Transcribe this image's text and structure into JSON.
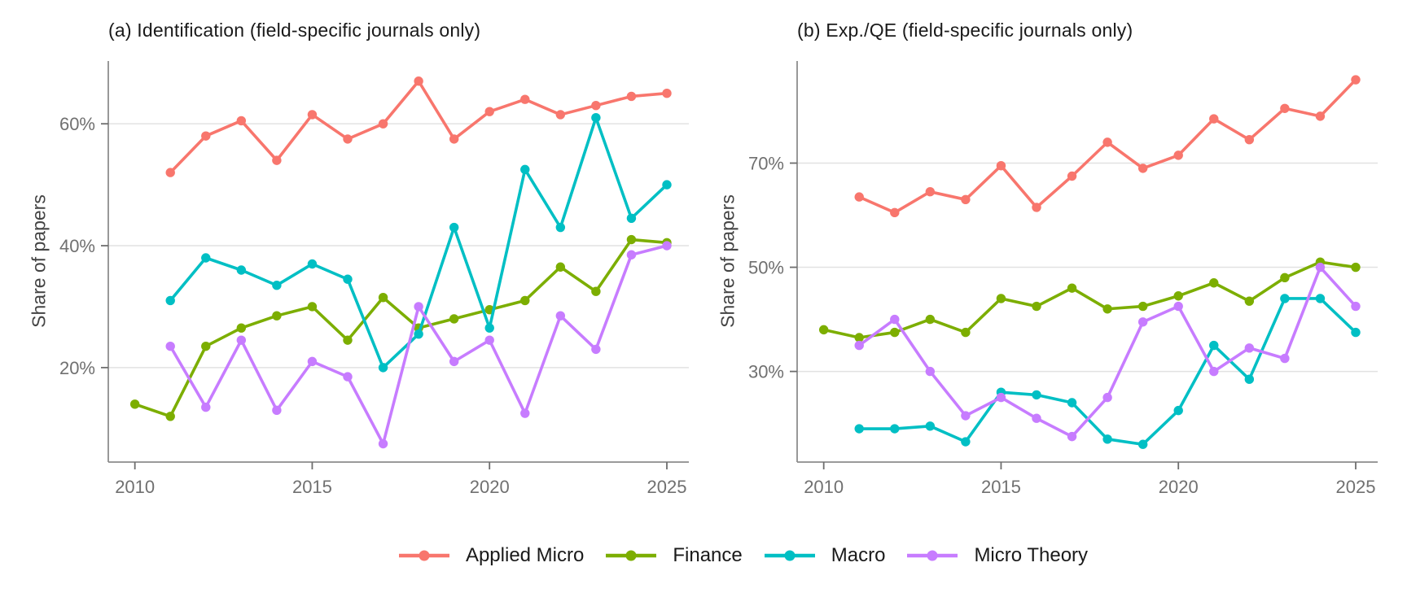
{
  "figure": {
    "background": "#ffffff",
    "axis_line_color": "#8c8c8c",
    "grid_color": "#e2e2e2",
    "tick_color": "#6e6e6e",
    "tick_label_color": "#707070"
  },
  "chart_data": [
    {
      "id": "a",
      "type": "line",
      "title": "(a) Identification (field-specific journals only)",
      "ylabel": "Share of papers",
      "xlabel": "",
      "x_ticks": [
        2010,
        2015,
        2020,
        2025
      ],
      "x_tick_labels": [
        "2010",
        "2015",
        "2020",
        "2025"
      ],
      "y_ticks": [
        20,
        40,
        60
      ],
      "y_tick_labels": [
        "20%",
        "40%",
        "60%"
      ],
      "xlim": [
        2009.25,
        2025.62
      ],
      "ylim": [
        4.5,
        70.3
      ],
      "grid": "horizontal-major-only",
      "legend_position": "bottom",
      "series": [
        {
          "name": "Applied Micro",
          "color": "#F8766D",
          "years": [
            2011,
            2012,
            2013,
            2014,
            2015,
            2016,
            2017,
            2018,
            2019,
            2020,
            2021,
            2022,
            2023,
            2024,
            2025
          ],
          "values": [
            52,
            58,
            60.5,
            54,
            61.5,
            57.5,
            60,
            67,
            57.5,
            62,
            64,
            61.5,
            63,
            64.5,
            65
          ]
        },
        {
          "name": "Finance",
          "color": "#7CAE00",
          "years": [
            2010,
            2011,
            2012,
            2013,
            2014,
            2015,
            2016,
            2017,
            2018,
            2019,
            2020,
            2021,
            2022,
            2023,
            2024,
            2025
          ],
          "values": [
            14,
            12,
            23.5,
            26.5,
            28.5,
            30,
            24.5,
            31.5,
            26.5,
            28,
            29.5,
            31,
            36.5,
            32.5,
            41,
            40.5
          ]
        },
        {
          "name": "Macro",
          "color": "#00BFC4",
          "years": [
            2011,
            2012,
            2013,
            2014,
            2015,
            2016,
            2017,
            2018,
            2019,
            2020,
            2021,
            2022,
            2023,
            2024,
            2025
          ],
          "values": [
            31,
            38,
            36,
            33.5,
            37,
            34.5,
            20,
            25.5,
            43,
            26.5,
            52.5,
            43,
            61,
            44.5,
            50
          ]
        },
        {
          "name": "Micro Theory",
          "color": "#C77CFF",
          "years": [
            2011,
            2012,
            2013,
            2014,
            2015,
            2016,
            2017,
            2018,
            2019,
            2020,
            2021,
            2022,
            2023,
            2024,
            2025
          ],
          "values": [
            23.5,
            13.5,
            24.5,
            13,
            21,
            18.5,
            7.5,
            30,
            21,
            24.5,
            12.5,
            28.5,
            23,
            38.5,
            40
          ]
        }
      ]
    },
    {
      "id": "b",
      "type": "line",
      "title": "(b) Exp./QE (field-specific journals only)",
      "ylabel": "Share of papers",
      "xlabel": "",
      "x_ticks": [
        2010,
        2015,
        2020,
        2025
      ],
      "x_tick_labels": [
        "2010",
        "2015",
        "2020",
        "2025"
      ],
      "y_ticks": [
        30,
        50,
        70
      ],
      "y_tick_labels": [
        "30%",
        "50%",
        "70%"
      ],
      "xlim": [
        2009.25,
        2025.62
      ],
      "ylim": [
        12.6,
        89.6
      ],
      "grid": "horizontal-major-only",
      "legend_position": "bottom",
      "series": [
        {
          "name": "Applied Micro",
          "color": "#F8766D",
          "years": [
            2011,
            2012,
            2013,
            2014,
            2015,
            2016,
            2017,
            2018,
            2019,
            2020,
            2021,
            2022,
            2023,
            2024,
            2025
          ],
          "values": [
            63.5,
            60.5,
            64.5,
            63,
            69.5,
            61.5,
            67.5,
            74,
            69,
            71.5,
            78.5,
            74.5,
            80.5,
            79,
            86
          ]
        },
        {
          "name": "Finance",
          "color": "#7CAE00",
          "years": [
            2010,
            2011,
            2012,
            2013,
            2014,
            2015,
            2016,
            2017,
            2018,
            2019,
            2020,
            2021,
            2022,
            2023,
            2024,
            2025
          ],
          "values": [
            38,
            36.5,
            37.5,
            40,
            37.5,
            44,
            42.5,
            46,
            42,
            42.5,
            44.5,
            47,
            43.5,
            48,
            51,
            50
          ]
        },
        {
          "name": "Macro",
          "color": "#00BFC4",
          "years": [
            2011,
            2012,
            2013,
            2014,
            2015,
            2016,
            2017,
            2018,
            2019,
            2020,
            2021,
            2022,
            2023,
            2024,
            2025
          ],
          "values": [
            19,
            19,
            19.5,
            16.5,
            26,
            25.5,
            24,
            17,
            16,
            22.5,
            35,
            28.5,
            44,
            44,
            37.5
          ]
        },
        {
          "name": "Micro Theory",
          "color": "#C77CFF",
          "years": [
            2011,
            2012,
            2013,
            2014,
            2015,
            2016,
            2017,
            2018,
            2019,
            2020,
            2021,
            2022,
            2023,
            2024,
            2025
          ],
          "values": [
            35,
            40,
            30,
            21.5,
            25,
            21,
            17.5,
            25,
            39.5,
            42.5,
            30,
            34.5,
            32.5,
            50,
            42.5
          ]
        }
      ]
    }
  ]
}
